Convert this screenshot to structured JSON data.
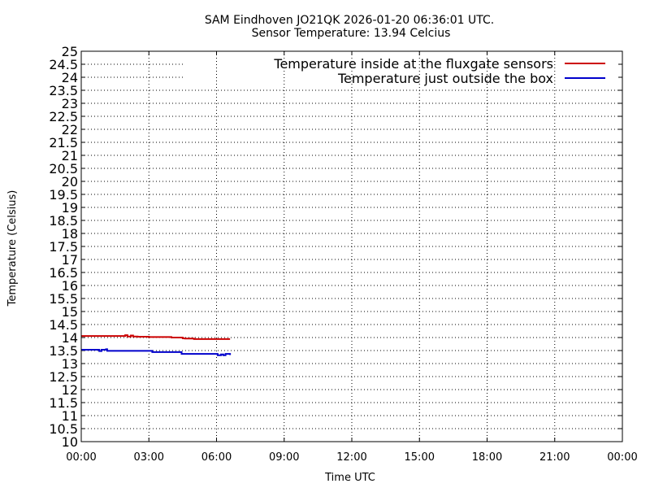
{
  "chart_data": {
    "type": "line",
    "title": "SAM Eindhoven JO21QK 2026-01-20 06:36:01 UTC.",
    "subtitle": "Sensor Temperature: 13.94 Celcius",
    "xlabel": "Time UTC",
    "ylabel": "Temperature (Celsius)",
    "x_unit": "hours UTC",
    "xlim": [
      0,
      24
    ],
    "ylim": [
      10,
      25
    ],
    "x_ticks": [
      0,
      3,
      6,
      9,
      12,
      15,
      18,
      21,
      24
    ],
    "x_tick_labels": [
      "00:00",
      "03:00",
      "06:00",
      "09:00",
      "12:00",
      "15:00",
      "18:00",
      "21:00",
      "00:00"
    ],
    "y_ticks": [
      10,
      10.5,
      11,
      11.5,
      12,
      12.5,
      13,
      13.5,
      14,
      14.5,
      15,
      15.5,
      16,
      16.5,
      17,
      17.5,
      18,
      18.5,
      19,
      19.5,
      20,
      20.5,
      21,
      21.5,
      22,
      22.5,
      23,
      23.5,
      24,
      24.5,
      25
    ],
    "y_tick_labels": [
      "10",
      "10.5",
      "11",
      "11.5",
      "12",
      "12.5",
      "13",
      "13.5",
      "14",
      "14.5",
      "15",
      "15.5",
      "16",
      "16.5",
      "17",
      "17.5",
      "18",
      "18.5",
      "19",
      "19.5",
      "20",
      "20.5",
      "21",
      "21.5",
      "22",
      "22.5",
      "23",
      "23.5",
      "24",
      "24.5",
      "25"
    ],
    "grid": true,
    "legend_position": "top-right",
    "series": [
      {
        "name": "Temperature inside at the fluxgate sensors",
        "color": "#cc0000",
        "x": [
          0,
          1.0,
          1.9,
          1.95,
          2.05,
          2.2,
          2.3,
          2.5,
          3.0,
          4.0,
          4.35,
          4.5,
          4.6,
          4.8,
          5.0,
          5.5,
          6.0,
          6.6
        ],
        "y": [
          14.06,
          14.06,
          14.06,
          14.09,
          14.04,
          14.08,
          14.04,
          14.03,
          14.02,
          14.0,
          14.0,
          13.97,
          13.96,
          13.96,
          13.94,
          13.94,
          13.94,
          13.94
        ]
      },
      {
        "name": "Temperature just outside the box",
        "color": "#0000cc",
        "x": [
          0,
          0.65,
          0.7,
          0.8,
          0.9,
          1.0,
          1.1,
          1.15,
          2.0,
          3.0,
          3.15,
          3.3,
          4.0,
          4.35,
          4.45,
          5.0,
          6.0,
          6.05,
          6.2,
          6.3,
          6.4,
          6.6
        ],
        "y": [
          13.53,
          13.53,
          13.53,
          13.48,
          13.53,
          13.53,
          13.55,
          13.49,
          13.49,
          13.49,
          13.44,
          13.44,
          13.44,
          13.44,
          13.37,
          13.37,
          13.37,
          13.32,
          13.35,
          13.32,
          13.37,
          13.33
        ]
      }
    ]
  }
}
